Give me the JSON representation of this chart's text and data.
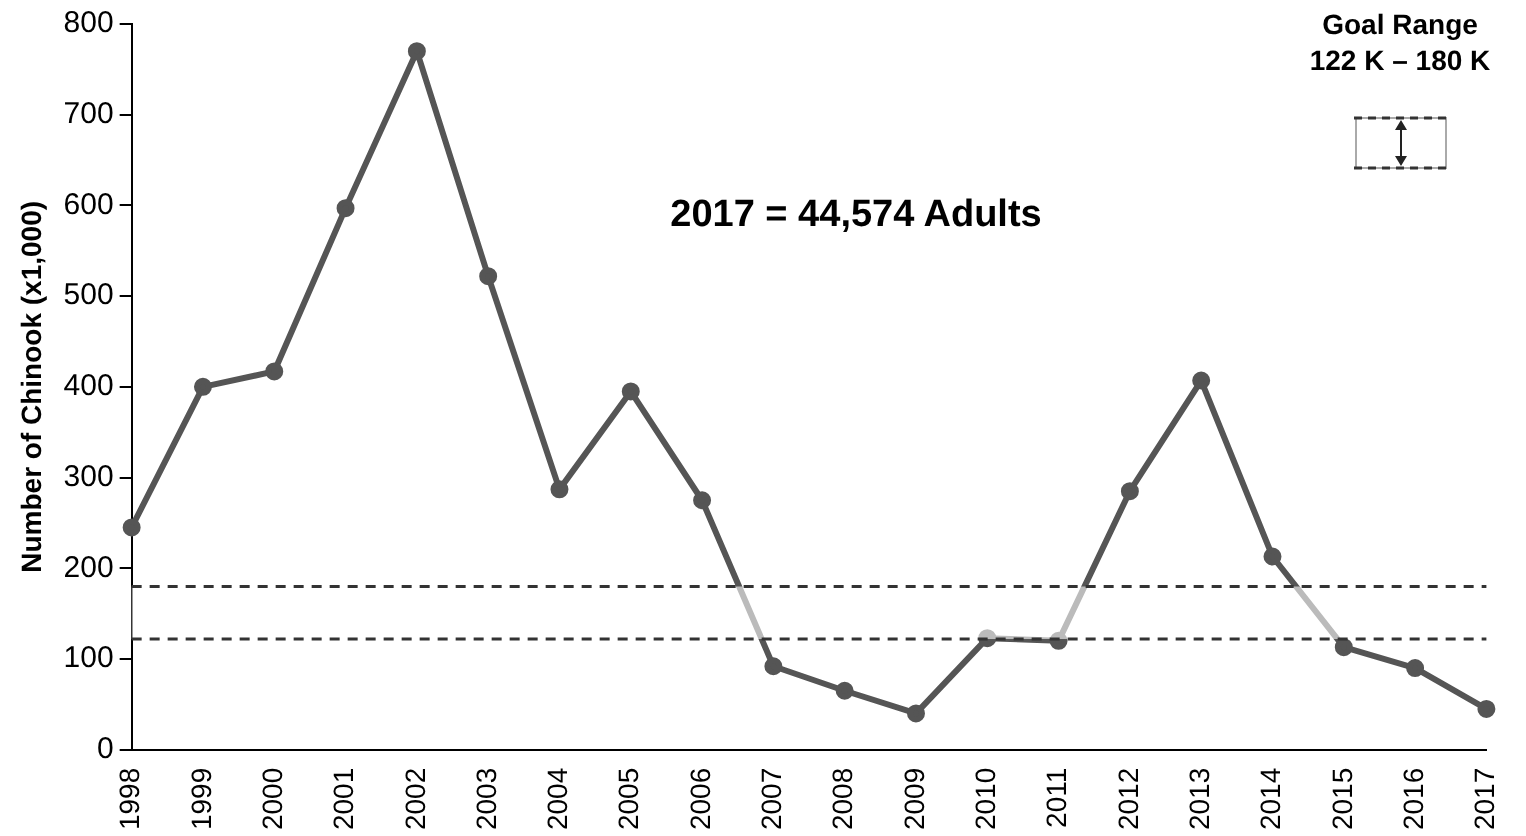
{
  "chart_data": {
    "type": "line",
    "ylabel": "Number of Chinook (x1,000)",
    "categories": [
      "1998",
      "1999",
      "2000",
      "2001",
      "2002",
      "2003",
      "2004",
      "2005",
      "2006",
      "2007",
      "2008",
      "2009",
      "2010",
      "2011",
      "2012",
      "2013",
      "2014",
      "2015",
      "2016",
      "2017"
    ],
    "series": [
      {
        "color": "#555555",
        "values": [
          245,
          400,
          417,
          597,
          770,
          522,
          287,
          395,
          275,
          92,
          65,
          40,
          123,
          120,
          285,
          407,
          213,
          113,
          90,
          45
        ]
      }
    ],
    "ylim": [
      0,
      800
    ],
    "yticks": [
      0,
      100,
      200,
      300,
      400,
      500,
      600,
      700,
      800
    ],
    "bands": [
      {
        "axis": "y",
        "from": 122,
        "to": 180,
        "color": "#ffffff"
      }
    ],
    "ref_lines": [
      {
        "axis": "y",
        "value": 122,
        "color": "#333333",
        "line_style": "dashed"
      },
      {
        "axis": "y",
        "value": 180,
        "color": "#333333",
        "line_style": "dashed"
      }
    ],
    "annotations": [
      "2017 = 44,574 Adults",
      "Goal Range",
      "122 K – 180 K"
    ],
    "grid": false,
    "legend": false,
    "marker": "circle",
    "line_style": "solid"
  }
}
